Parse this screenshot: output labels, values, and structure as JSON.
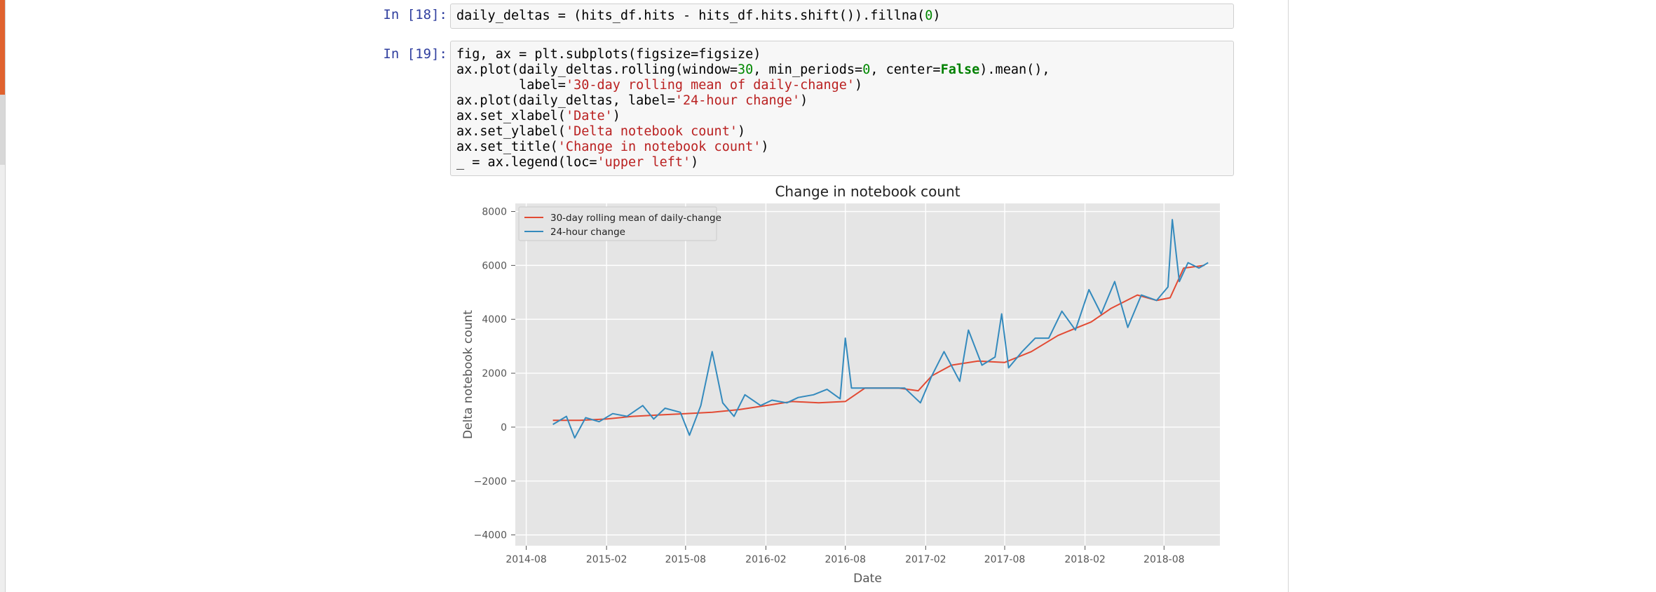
{
  "cells": [
    {
      "prompt": "In [18]:",
      "lines": [
        [
          {
            "t": "daily_deltas = (hits_df.hits - hits_df.hits.shift()).fillna("
          },
          {
            "t": "0",
            "c": "num"
          },
          {
            "t": ")"
          }
        ]
      ]
    },
    {
      "prompt": "In [19]:",
      "lines": [
        [
          {
            "t": "fig, ax = plt.subplots(figsize=figsize)"
          }
        ],
        [
          {
            "t": "ax.plot(daily_deltas.rolling(window="
          },
          {
            "t": "30",
            "c": "num"
          },
          {
            "t": ", min_periods="
          },
          {
            "t": "0",
            "c": "num"
          },
          {
            "t": ", center="
          },
          {
            "t": "False",
            "c": "kw"
          },
          {
            "t": ").mean(),"
          }
        ],
        [
          {
            "t": "        label="
          },
          {
            "t": "'30-day rolling mean of daily-change'",
            "c": "str"
          },
          {
            "t": ")"
          }
        ],
        [
          {
            "t": "ax.plot(daily_deltas, label="
          },
          {
            "t": "'24-hour change'",
            "c": "str"
          },
          {
            "t": ")"
          }
        ],
        [
          {
            "t": "ax.set_xlabel("
          },
          {
            "t": "'Date'",
            "c": "str"
          },
          {
            "t": ")"
          }
        ],
        [
          {
            "t": "ax.set_ylabel("
          },
          {
            "t": "'Delta notebook count'",
            "c": "str"
          },
          {
            "t": ")"
          }
        ],
        [
          {
            "t": "ax.set_title("
          },
          {
            "t": "'Change in notebook count'",
            "c": "str"
          },
          {
            "t": ")"
          }
        ],
        [
          {
            "t": "_ = ax.legend(loc="
          },
          {
            "t": "'upper left'",
            "c": "str"
          },
          {
            "t": ")"
          }
        ]
      ]
    }
  ],
  "chart_data": {
    "type": "line",
    "title": "Change in notebook count",
    "xlabel": "Date",
    "ylabel": "Delta notebook count",
    "x_ticks": [
      "2014-08",
      "2015-02",
      "2015-08",
      "2016-02",
      "2016-08",
      "2017-02",
      "2017-08",
      "2018-02",
      "2018-08"
    ],
    "y_ticks": [
      -4000,
      -2000,
      0,
      2000,
      4000,
      6000,
      8000
    ],
    "xlim": [
      "2014-07-07",
      "2018-12-07"
    ],
    "ylim": [
      -4400,
      8300
    ],
    "grid": true,
    "legend_position": "upper left",
    "series": [
      {
        "name": "30-day rolling mean of daily-change",
        "color": "#e24a33",
        "x": [
          "2014-10-01",
          "2014-12-01",
          "2015-02-01",
          "2015-04-01",
          "2015-06-01",
          "2015-08-01",
          "2015-10-01",
          "2015-12-01",
          "2016-02-01",
          "2016-04-01",
          "2016-06-01",
          "2016-08-01",
          "2016-09-15",
          "2016-12-01",
          "2017-01-15",
          "2017-02-15",
          "2017-04-01",
          "2017-06-01",
          "2017-08-01",
          "2017-10-01",
          "2017-12-01",
          "2018-01-15",
          "2018-02-15",
          "2018-04-01",
          "2018-06-01",
          "2018-07-15",
          "2018-08-15",
          "2018-09-15",
          "2018-11-01"
        ],
        "values": [
          250,
          250,
          300,
          400,
          450,
          500,
          550,
          650,
          800,
          950,
          900,
          950,
          1450,
          1450,
          1350,
          1900,
          2300,
          2450,
          2400,
          2800,
          3400,
          3700,
          3900,
          4400,
          4900,
          4700,
          4800,
          5900,
          6000
        ]
      },
      {
        "name": "24-hour change",
        "color": "#348abd",
        "x": [
          "2014-10-01",
          "2014-11-01",
          "2014-11-20",
          "2014-12-15",
          "2015-01-15",
          "2015-02-15",
          "2015-03-20",
          "2015-04-25",
          "2015-05-20",
          "2015-06-15",
          "2015-07-20",
          "2015-08-10",
          "2015-09-05",
          "2015-10-01",
          "2015-10-25",
          "2015-11-20",
          "2015-12-15",
          "2016-01-20",
          "2016-02-15",
          "2016-03-20",
          "2016-04-15",
          "2016-05-20",
          "2016-06-20",
          "2016-07-20",
          "2016-08-01",
          "2016-08-15",
          "2016-09-15",
          "2016-10-15",
          "2016-11-15",
          "2016-12-15",
          "2017-01-20",
          "2017-02-15",
          "2017-03-15",
          "2017-04-20",
          "2017-05-10",
          "2017-06-10",
          "2017-07-10",
          "2017-07-25",
          "2017-08-10",
          "2017-09-10",
          "2017-10-10",
          "2017-11-10",
          "2017-12-10",
          "2018-01-10",
          "2018-02-10",
          "2018-03-10",
          "2018-04-10",
          "2018-05-10",
          "2018-06-10",
          "2018-07-15",
          "2018-08-10",
          "2018-08-20",
          "2018-09-05",
          "2018-09-25",
          "2018-10-20",
          "2018-11-10"
        ],
        "values": [
          100,
          400,
          -400,
          350,
          200,
          500,
          400,
          800,
          300,
          700,
          550,
          -300,
          800,
          2800,
          900,
          400,
          1200,
          800,
          1000,
          900,
          1100,
          1200,
          1400,
          1050,
          3300,
          1450,
          1450,
          1450,
          1450,
          1450,
          900,
          1900,
          2800,
          1700,
          3600,
          2300,
          2600,
          4200,
          2200,
          2800,
          3300,
          3300,
          4300,
          3600,
          5100,
          4200,
          5400,
          3700,
          4900,
          4700,
          5200,
          7700,
          5400,
          6100,
          5900,
          6100
        ]
      }
    ]
  }
}
